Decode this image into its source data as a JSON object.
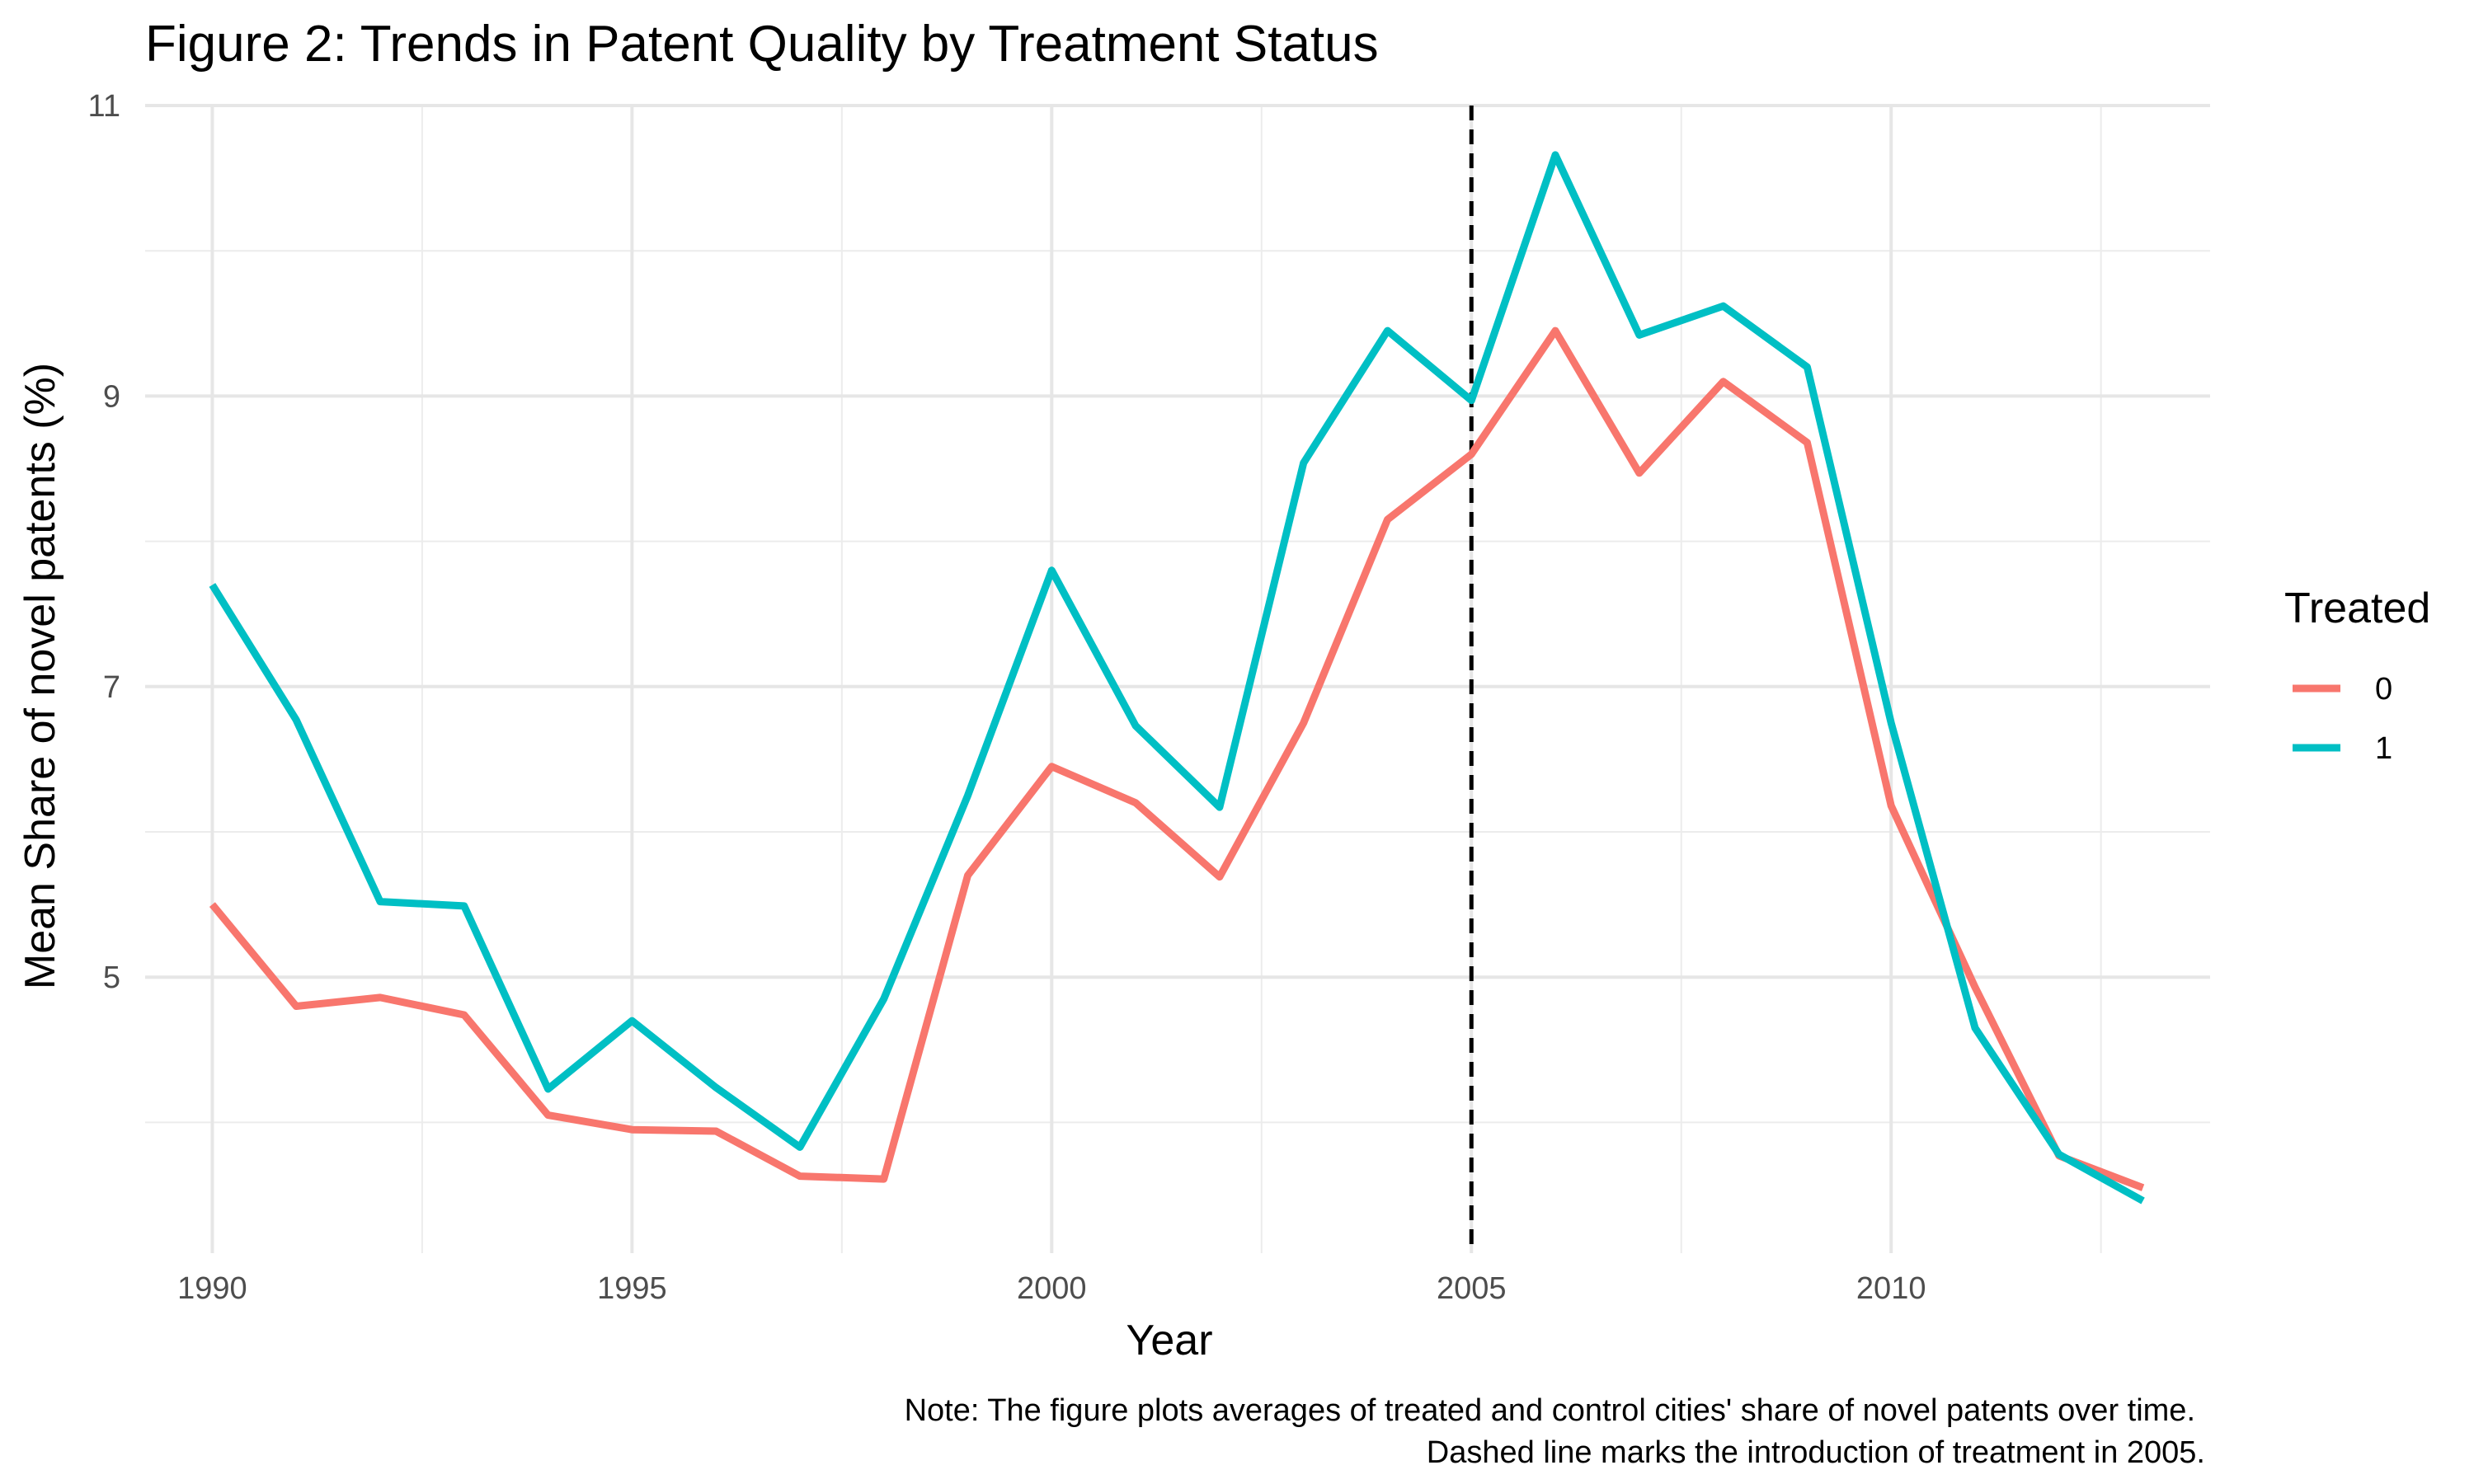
{
  "chart_data": {
    "type": "line",
    "title": "Figure 2: Trends in Patent Quality by Treatment Status",
    "xlabel": "Year",
    "ylabel": "Mean Share of novel patents (%)",
    "x": [
      1990,
      1991,
      1992,
      1993,
      1994,
      1995,
      1996,
      1997,
      1998,
      1999,
      2000,
      2001,
      2002,
      2003,
      2004,
      2005,
      2006,
      2007,
      2008,
      2009,
      2010,
      2011,
      2012,
      2013
    ],
    "xlim": [
      1989.2,
      2013.8
    ],
    "ylim": [
      3.1,
      11
    ],
    "x_ticks": [
      1990,
      1995,
      2000,
      2005,
      2010
    ],
    "x_tick_labels": [
      "1990",
      "1995",
      "2000",
      "2005",
      "2010"
    ],
    "y_ticks": [
      5,
      7,
      9,
      11
    ],
    "y_tick_labels": [
      "5",
      "7",
      "9",
      "11"
    ],
    "legend_title": "Treated",
    "legend_position": "right",
    "grid": true,
    "series": [
      {
        "name": "0",
        "color": "#F8766D",
        "values": [
          5.5,
          4.8,
          4.86,
          4.74,
          4.05,
          3.95,
          3.94,
          3.63,
          3.61,
          5.7,
          6.45,
          6.2,
          5.69,
          6.75,
          8.15,
          8.6,
          9.45,
          8.47,
          9.1,
          8.68,
          6.18,
          4.93,
          3.77,
          3.55
        ]
      },
      {
        "name": "1",
        "color": "#00BFC4",
        "values": [
          7.7,
          6.77,
          5.52,
          5.49,
          4.23,
          4.7,
          4.24,
          3.83,
          4.85,
          6.25,
          7.8,
          6.73,
          6.17,
          8.54,
          9.45,
          8.97,
          10.66,
          9.42,
          9.62,
          9.2,
          6.75,
          4.65,
          3.78,
          3.46
        ]
      }
    ],
    "annotations": [
      {
        "type": "vline",
        "x": 2005,
        "style": "dashed",
        "color": "#000000"
      }
    ]
  },
  "note": {
    "line1": "Note: The figure plots averages of treated and control cities' share of novel patents over time.",
    "line2": "Dashed line marks the introduction of treatment in 2005."
  }
}
